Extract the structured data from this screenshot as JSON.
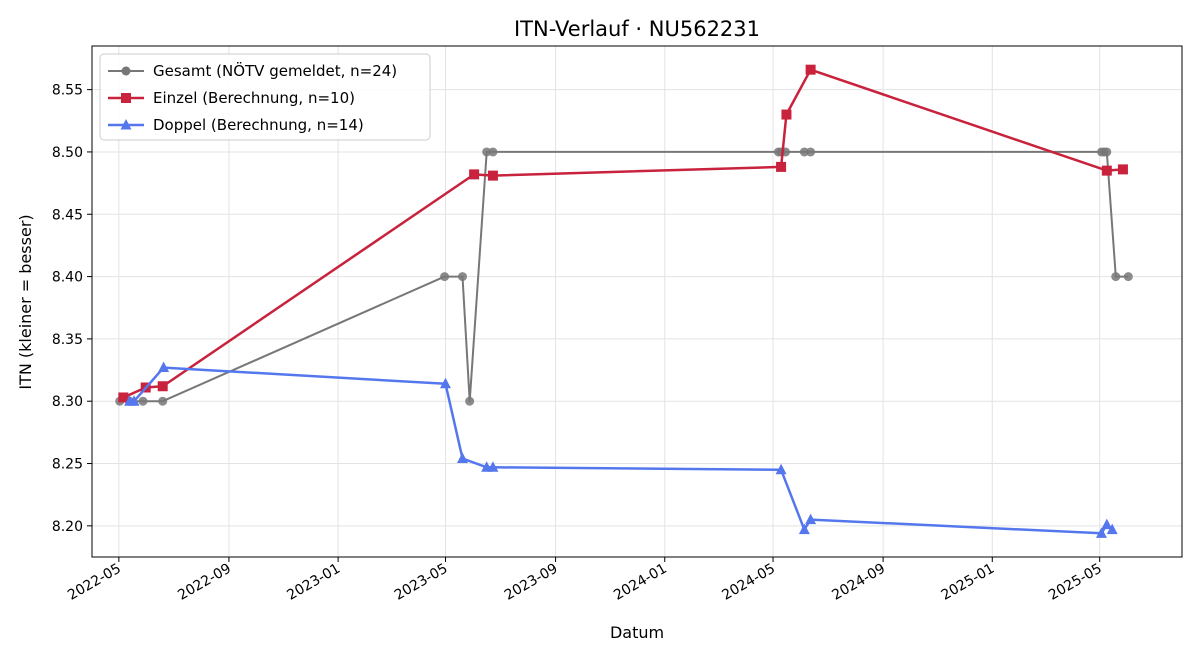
{
  "chart_data": {
    "type": "line",
    "title": "ITN-Verlauf · NU562231",
    "xlabel": "Datum",
    "ylabel": "ITN  (kleiner = besser)",
    "x_axis_type": "date",
    "xlim": [
      "2022-04-01",
      "2025-08-01"
    ],
    "ylim": [
      8.175,
      8.585
    ],
    "x_ticks": [
      "2022-05",
      "2022-09",
      "2023-01",
      "2023-05",
      "2023-09",
      "2024-01",
      "2024-05",
      "2024-09",
      "2025-01",
      "2025-05"
    ],
    "y_ticks": [
      "8.20",
      "8.25",
      "8.30",
      "8.35",
      "8.40",
      "8.45",
      "8.50",
      "8.55"
    ],
    "grid": true,
    "legend_position": "top-left",
    "series": [
      {
        "name": "Gesamt (NÖTV gemeldet, n=24)",
        "color": "#777777",
        "marker": "circle",
        "points": [
          [
            "2022-05-02",
            8.3
          ],
          [
            "2022-05-13",
            8.3
          ],
          [
            "2022-05-28",
            8.3
          ],
          [
            "2022-06-19",
            8.3
          ],
          [
            "2023-04-30",
            8.4
          ],
          [
            "2023-05-20",
            8.4
          ],
          [
            "2023-05-28",
            8.3
          ],
          [
            "2023-06-16",
            8.5
          ],
          [
            "2023-06-23",
            8.5
          ],
          [
            "2024-05-07",
            8.5
          ],
          [
            "2024-05-10",
            8.5
          ],
          [
            "2024-05-15",
            8.5
          ],
          [
            "2024-06-05",
            8.5
          ],
          [
            "2024-06-12",
            8.5
          ],
          [
            "2025-05-03",
            8.5
          ],
          [
            "2025-05-06",
            8.5
          ],
          [
            "2025-05-09",
            8.5
          ],
          [
            "2025-05-19",
            8.4
          ],
          [
            "2025-06-02",
            8.4
          ]
        ]
      },
      {
        "name": "Einzel (Berechnung, n=10)",
        "color": "#c8223c",
        "marker": "square",
        "points": [
          [
            "2022-05-06",
            8.303
          ],
          [
            "2022-05-31",
            8.311
          ],
          [
            "2022-06-19",
            8.312
          ],
          [
            "2023-06-02",
            8.482
          ],
          [
            "2023-06-23",
            8.481
          ],
          [
            "2024-05-10",
            8.488
          ],
          [
            "2024-05-16",
            8.53
          ],
          [
            "2024-06-12",
            8.566
          ],
          [
            "2025-05-09",
            8.485
          ],
          [
            "2025-05-27",
            8.486
          ]
        ]
      },
      {
        "name": "Doppel (Berechnung, n=14)",
        "color": "#5577ee",
        "marker": "triangle",
        "points": [
          [
            "2022-05-13",
            8.3
          ],
          [
            "2022-05-18",
            8.3
          ],
          [
            "2022-06-20",
            8.327
          ],
          [
            "2023-05-01",
            8.314
          ],
          [
            "2023-05-20",
            8.254
          ],
          [
            "2023-06-16",
            8.247
          ],
          [
            "2023-06-23",
            8.247
          ],
          [
            "2024-05-10",
            8.245
          ],
          [
            "2024-06-05",
            8.197
          ],
          [
            "2024-06-12",
            8.205
          ],
          [
            "2025-05-03",
            8.194
          ],
          [
            "2025-05-09",
            8.201
          ],
          [
            "2025-05-15",
            8.197
          ]
        ]
      }
    ]
  }
}
